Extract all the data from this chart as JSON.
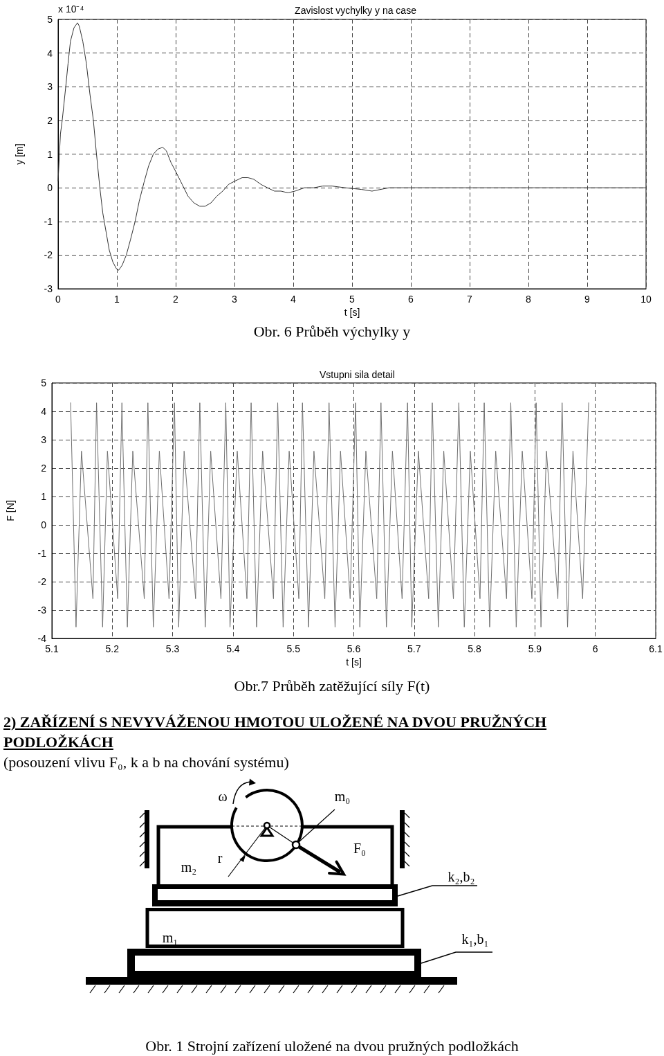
{
  "chart_data": [
    {
      "type": "line",
      "title": "Zavislost vychylky y na case",
      "xlabel": "t [s]",
      "ylabel": "y [m]",
      "annotations": [
        "x 10⁻⁴",
        "Obr. 6 Průběh výchylky y"
      ],
      "x": [
        0,
        0.04,
        0.07,
        0.13,
        0.17,
        0.21,
        0.27,
        0.33,
        0.36,
        0.42,
        0.48,
        0.54,
        0.6,
        0.65,
        0.71,
        0.76,
        0.82,
        0.87,
        0.93,
        0.99,
        1.03,
        1.09,
        1.16,
        1.23,
        1.31,
        1.38,
        1.46,
        1.54,
        1.62,
        1.7,
        1.78,
        1.84,
        1.92,
        2.01,
        2.11,
        2.21,
        2.31,
        2.41,
        2.5,
        2.6,
        2.7,
        2.8,
        2.9,
        3.01,
        3.13,
        3.23,
        3.33,
        3.45,
        3.56,
        3.68,
        3.79,
        3.91,
        4.03,
        4.19,
        4.35,
        4.5,
        4.66,
        4.88,
        5.16,
        5.34,
        5.63,
        6.03,
        7,
        8,
        9,
        10
      ],
      "values": [
        0.2,
        1.6,
        2.0,
        3.0,
        3.7,
        4.35,
        4.75,
        4.9,
        4.8,
        4.35,
        3.7,
        2.8,
        2.0,
        1.05,
        0,
        -0.75,
        -1.35,
        -1.85,
        -2.2,
        -2.4,
        -2.45,
        -2.3,
        -2.0,
        -1.55,
        -1.0,
        -0.4,
        0.15,
        0.65,
        1.0,
        1.15,
        1.2,
        1.1,
        0.75,
        0.45,
        0.1,
        -0.25,
        -0.45,
        -0.55,
        -0.55,
        -0.45,
        -0.25,
        -0.1,
        0.1,
        0.2,
        0.3,
        0.3,
        0.25,
        0.1,
        0,
        -0.1,
        -0.1,
        -0.15,
        -0.1,
        0,
        0,
        0.05,
        0.05,
        0,
        -0.05,
        -0.1,
        0,
        0,
        0,
        0,
        0,
        0
      ],
      "color": "#333333",
      "xlim": [
        0,
        10
      ],
      "ylim": [
        -3,
        5
      ],
      "xticks": [
        0,
        1,
        2,
        3,
        4,
        5,
        6,
        7,
        8,
        9,
        10
      ],
      "yticks": [
        -3,
        -2,
        -1,
        0,
        1,
        2,
        3,
        4,
        5
      ],
      "grid": true
    },
    {
      "type": "line",
      "title": "Vstupni sila detail",
      "xlabel": "t [s]",
      "ylabel": "F [N]",
      "annotations": [
        "Obr.7 Průběh zatěžující síly F(t)"
      ],
      "x": [
        5.131,
        5.14,
        5.149,
        5.168,
        5.174,
        5.184,
        5.192,
        5.209,
        5.216,
        5.225,
        5.234,
        5.253,
        5.259,
        5.268,
        5.278,
        5.294,
        5.303,
        5.31,
        5.319,
        5.338,
        5.345,
        5.354,
        5.363,
        5.38,
        5.388,
        5.395,
        5.407,
        5.423,
        5.43,
        5.439,
        5.449,
        5.467,
        5.474,
        5.483,
        5.493,
        5.509,
        5.515,
        5.525,
        5.534,
        5.552,
        5.559,
        5.569,
        5.578,
        5.594,
        5.603,
        5.61,
        5.62,
        5.638,
        5.645,
        5.654,
        5.664,
        5.68,
        5.689,
        5.696,
        5.707,
        5.724,
        5.73,
        5.74,
        5.749,
        5.765,
        5.774,
        5.783,
        5.793,
        5.809,
        5.816,
        5.825,
        5.835,
        5.853,
        5.86,
        5.869,
        5.879,
        5.895,
        5.902,
        5.91,
        5.919,
        5.938,
        5.945,
        5.954,
        5.963,
        5.979,
        5.989
      ],
      "values": [
        4.3,
        -3.6,
        2.6,
        -2.6,
        4.3,
        -3.6,
        2.6,
        -2.6,
        4.3,
        -3.6,
        2.6,
        -2.6,
        4.3,
        -3.6,
        2.6,
        -2.6,
        4.3,
        -3.6,
        2.6,
        -2.6,
        4.3,
        -3.6,
        2.6,
        -2.6,
        4.3,
        -3.6,
        2.6,
        -2.6,
        4.3,
        -3.6,
        2.6,
        -2.6,
        4.3,
        -3.6,
        2.6,
        -2.6,
        4.3,
        -3.6,
        2.6,
        -2.6,
        4.3,
        -3.6,
        2.6,
        -2.6,
        4.3,
        -3.6,
        2.6,
        -2.6,
        4.3,
        -3.6,
        2.6,
        -2.6,
        4.3,
        -3.6,
        2.6,
        -2.6,
        4.3,
        -3.6,
        2.6,
        -2.6,
        4.3,
        -3.6,
        2.6,
        -2.6,
        4.3,
        -3.6,
        2.6,
        -2.6,
        4.3,
        -3.6,
        2.6,
        -2.6,
        4.3,
        -3.6,
        2.6,
        -2.6,
        4.3,
        -3.6,
        2.6,
        -2.6,
        4.3
      ],
      "color": "#707070",
      "xlim": [
        5.1,
        6.1
      ],
      "ylim": [
        -4,
        5
      ],
      "xticks": [
        5.1,
        5.2,
        5.3,
        5.4,
        5.5,
        5.6,
        5.7,
        5.8,
        5.9,
        6,
        6.1
      ],
      "yticks": [
        -4,
        -3,
        -2,
        -1,
        0,
        1,
        2,
        3,
        4,
        5
      ],
      "grid": true
    },
    {
      "type": "other",
      "title": "2) ZAŘÍZENÍ S NEVYVÁŽENOU HMOTOU ULOŽENÉ NA DVOU PRUŽNÝCH PODLOŽKÁCH",
      "subtitle": "(posouzení vlivu F₀, k a b na chování systému)",
      "annotations": [
        "ω",
        "m₀",
        "m₂",
        "r",
        "F₀",
        "k₂,b₂",
        "m₁",
        "k₁,b₁",
        "Obr. 1 Strojní zařízení uložené na dvou pružných podložkách"
      ]
    }
  ]
}
